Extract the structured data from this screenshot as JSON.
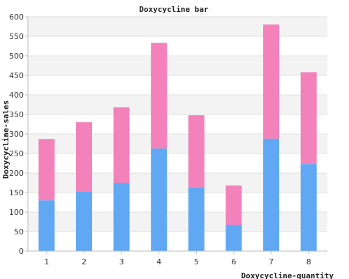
{
  "chart_data": {
    "type": "bar",
    "stacked": true,
    "title": "Doxycycline bar",
    "xlabel": "Doxycycline-quantity",
    "ylabel": "Doxycycline-sales",
    "categories": [
      "1",
      "2",
      "3",
      "4",
      "5",
      "6",
      "7",
      "8"
    ],
    "ylim": [
      0,
      600
    ],
    "yticks": [
      0,
      50,
      100,
      150,
      200,
      250,
      300,
      350,
      400,
      450,
      500,
      550,
      600
    ],
    "grid": true,
    "series": [
      {
        "color": "#60a8f4",
        "values": [
          130,
          153,
          175,
          263,
          163,
          67,
          288,
          223
        ]
      },
      {
        "color": "#f282b9",
        "values": [
          157,
          177,
          193,
          270,
          185,
          101,
          292,
          235
        ]
      }
    ]
  },
  "colors": {
    "band_light": "#ffffff",
    "band_dark": "#f3f3f3",
    "grid_line": "#e2e2e2",
    "axis_line": "#bbbbbb"
  }
}
